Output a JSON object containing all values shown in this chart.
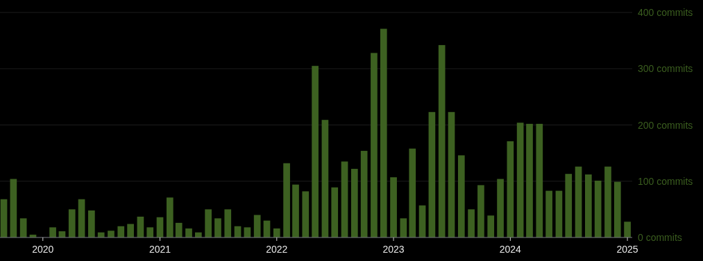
{
  "chart_data": {
    "type": "bar",
    "x": [
      "2019-09",
      "2019-10",
      "2019-11",
      "2019-12",
      "2020-01",
      "2020-02",
      "2020-03",
      "2020-04",
      "2020-05",
      "2020-06",
      "2020-07",
      "2020-08",
      "2020-09",
      "2020-10",
      "2020-11",
      "2020-12",
      "2021-01",
      "2021-02",
      "2021-03",
      "2021-04",
      "2021-05",
      "2021-06",
      "2021-07",
      "2021-08",
      "2021-09",
      "2021-10",
      "2021-11",
      "2021-12",
      "2022-01",
      "2022-02",
      "2022-03",
      "2022-04",
      "2022-05",
      "2022-06",
      "2022-07",
      "2022-08",
      "2022-09",
      "2022-10",
      "2022-11",
      "2022-12",
      "2023-01",
      "2023-02",
      "2023-03",
      "2023-04",
      "2023-05",
      "2023-06",
      "2023-07",
      "2023-08",
      "2023-09",
      "2023-10",
      "2023-11",
      "2023-12",
      "2024-01",
      "2024-02",
      "2024-03",
      "2024-04",
      "2024-05",
      "2024-06",
      "2024-07",
      "2024-08",
      "2024-09",
      "2024-10",
      "2024-11",
      "2024-12",
      "2025-01"
    ],
    "values": [
      68,
      104,
      34,
      5,
      0,
      18,
      11,
      50,
      68,
      48,
      9,
      12,
      20,
      24,
      37,
      18,
      36,
      71,
      26,
      16,
      9,
      50,
      34,
      50,
      20,
      18,
      40,
      30,
      16,
      132,
      94,
      82,
      305,
      209,
      89,
      135,
      122,
      154,
      328,
      371,
      107,
      34,
      158,
      57,
      223,
      342,
      223,
      146,
      50,
      93,
      39,
      104,
      171,
      204,
      202,
      202,
      83,
      83,
      113,
      126,
      112,
      101,
      126,
      99,
      28
    ],
    "color": "#3d6121",
    "xlim": [
      "2019-08-20",
      "2025-01-16"
    ],
    "xticks": [
      {
        "value": "2020-01",
        "label": "2020"
      },
      {
        "value": "2021-01",
        "label": "2021"
      },
      {
        "value": "2022-01",
        "label": "2022"
      },
      {
        "value": "2023-01",
        "label": "2023"
      },
      {
        "value": "2024-01",
        "label": "2024"
      },
      {
        "value": "2025-01",
        "label": "2025"
      }
    ],
    "ylim": [
      0,
      400
    ],
    "yticks": [
      {
        "value": 0,
        "label": "0 commits"
      },
      {
        "value": 100,
        "label": "100 commits"
      },
      {
        "value": 200,
        "label": "200 commits"
      },
      {
        "value": 300,
        "label": "300 commits"
      },
      {
        "value": 400,
        "label": "400 commits"
      }
    ],
    "grid": "y"
  }
}
